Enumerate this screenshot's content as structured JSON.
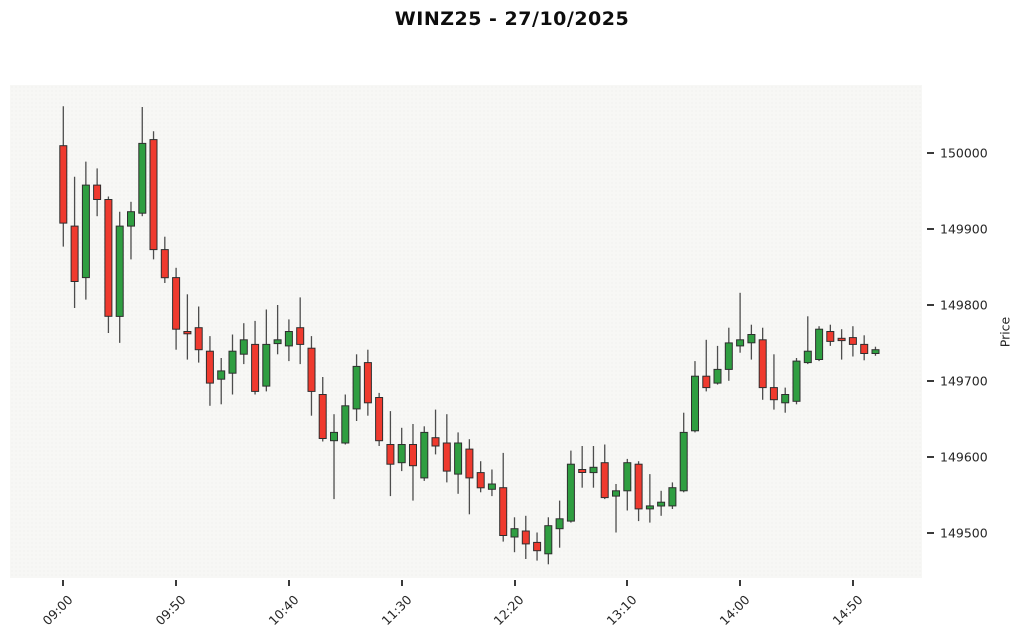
{
  "title": "WINZ25 - 27/10/2025",
  "chart_data": {
    "type": "candlestick",
    "interval": "5min",
    "title": "WINZ25 - 27/10/2025",
    "ylabel": "Price",
    "ylim": [
      149440,
      150090
    ],
    "yticks": [
      149500,
      149600,
      149700,
      149800,
      149900,
      150000
    ],
    "xticks": [
      {
        "label": "09:00",
        "index": 0
      },
      {
        "label": "09:50",
        "index": 10
      },
      {
        "label": "10:40",
        "index": 20
      },
      {
        "label": "11:30",
        "index": 30
      },
      {
        "label": "12:20",
        "index": 40
      },
      {
        "label": "13:10",
        "index": 50
      },
      {
        "label": "14:00",
        "index": 60
      },
      {
        "label": "14:50",
        "index": 70
      }
    ],
    "x": [
      "09:00",
      "09:05",
      "09:10",
      "09:15",
      "09:20",
      "09:25",
      "09:30",
      "09:35",
      "09:40",
      "09:45",
      "09:50",
      "09:55",
      "10:00",
      "10:05",
      "10:10",
      "10:15",
      "10:20",
      "10:25",
      "10:30",
      "10:35",
      "10:40",
      "10:45",
      "10:50",
      "10:55",
      "11:00",
      "11:05",
      "11:10",
      "11:15",
      "11:20",
      "11:25",
      "11:30",
      "11:35",
      "11:40",
      "11:45",
      "11:50",
      "11:55",
      "12:00",
      "12:05",
      "12:10",
      "12:15",
      "12:20",
      "12:25",
      "12:30",
      "12:35",
      "12:40",
      "12:45",
      "12:50",
      "12:55",
      "13:00",
      "13:05",
      "13:10",
      "13:15",
      "13:20",
      "13:25",
      "13:30",
      "13:35",
      "13:40",
      "13:45",
      "13:50",
      "13:55",
      "14:00",
      "14:05",
      "14:10",
      "14:15",
      "14:20",
      "14:25",
      "14:30",
      "14:35",
      "14:40",
      "14:45",
      "14:50",
      "14:55",
      "15:00"
    ],
    "open": [
      150010,
      149904,
      149836,
      149958,
      149939,
      149785,
      149904,
      149921,
      150018,
      149873,
      149836,
      149765,
      149770,
      149739,
      149702,
      149710,
      149735,
      149748,
      149693,
      149749,
      149746,
      149770,
      149743,
      149682,
      149621,
      149618,
      149663,
      149724,
      149678,
      149616,
      149592,
      149616,
      149572,
      149625,
      149618,
      149577,
      149610,
      149579,
      149557,
      149559,
      149494,
      149502,
      149487,
      149472,
      149505,
      149515,
      149583,
      149579,
      149592,
      149548,
      149555,
      149590,
      149531,
      149535,
      149535,
      149555,
      149634,
      149706,
      149697,
      149715,
      149746,
      149750,
      149754,
      149691,
      149671,
      149673,
      149724,
      149728,
      149765,
      149756,
      149757,
      149748,
      149736
    ],
    "high": [
      150062,
      149969,
      149989,
      149980,
      149943,
      149923,
      149936,
      150061,
      150029,
      149890,
      149849,
      149814,
      149798,
      149759,
      149730,
      149761,
      149776,
      149779,
      149794,
      149800,
      149781,
      149810,
      149759,
      149705,
      149656,
      149682,
      149735,
      149741,
      149684,
      149660,
      149638,
      149643,
      149640,
      149662,
      149656,
      149632,
      149623,
      149594,
      149583,
      149605,
      149520,
      149522,
      149500,
      149520,
      149542,
      149608,
      149614,
      149614,
      149616,
      149564,
      149597,
      149594,
      149577,
      149555,
      149566,
      149658,
      149726,
      149754,
      149746,
      149770,
      149816,
      149774,
      149770,
      149735,
      149691,
      149730,
      149785,
      149772,
      149774,
      149768,
      149772,
      149760,
      149745
    ],
    "low": [
      149877,
      149796,
      149807,
      149917,
      149763,
      149750,
      149860,
      149917,
      149860,
      149829,
      149741,
      149728,
      149724,
      149667,
      149669,
      149682,
      149722,
      149682,
      149686,
      149735,
      149726,
      149722,
      149654,
      149620,
      149544,
      149616,
      149647,
      149654,
      149614,
      149548,
      149581,
      149542,
      149568,
      149603,
      149566,
      149551,
      149524,
      149553,
      149548,
      149488,
      149474,
      149465,
      149463,
      149458,
      149480,
      149513,
      149559,
      149559,
      149544,
      149500,
      149529,
      149515,
      149513,
      149522,
      149531,
      149553,
      149632,
      149686,
      149695,
      149700,
      149737,
      149728,
      149675,
      149662,
      149658,
      149669,
      149722,
      149726,
      149746,
      149728,
      149732,
      149727,
      149733
    ],
    "close": [
      149908,
      149831,
      149958,
      149939,
      149785,
      149904,
      149923,
      150013,
      149873,
      149836,
      149768,
      149762,
      149741,
      149697,
      149713,
      149739,
      149754,
      149686,
      149748,
      149754,
      149765,
      149748,
      149686,
      149624,
      149632,
      149667,
      149719,
      149671,
      149621,
      149590,
      149616,
      149588,
      149632,
      149614,
      149581,
      149618,
      149572,
      149559,
      149564,
      149496,
      149505,
      149485,
      149476,
      149509,
      149518,
      149590,
      149579,
      149586,
      149546,
      149555,
      149592,
      149531,
      149535,
      149540,
      149559,
      149632,
      149706,
      149691,
      149715,
      149750,
      149754,
      149761,
      149691,
      149675,
      149682,
      149726,
      149739,
      149768,
      149752,
      149753,
      149748,
      149736,
      149741
    ],
    "colors": {
      "up": "#2f9e41",
      "down": "#ef3a2e",
      "edge": "#2e2e2e",
      "wick": "#4d4d4d",
      "plot_bg": "#f7f7f5",
      "tick_text": "#262626"
    },
    "legend": null,
    "grid": false
  }
}
